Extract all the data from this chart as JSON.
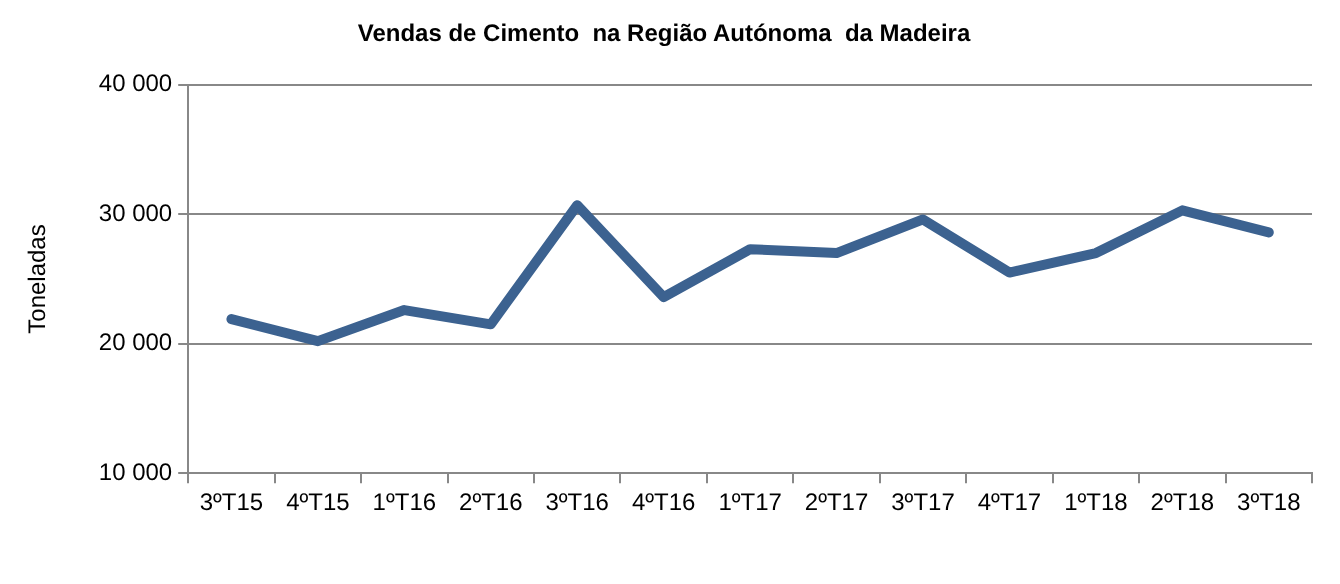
{
  "chart_data": {
    "type": "line",
    "title": "Vendas de Cimento  na Região Autónoma  da Madeira",
    "ylabel": "Toneladas",
    "categories": [
      "3ºT15",
      "4ºT15",
      "1ºT16",
      "2ºT16",
      "3ºT16",
      "4ºT16",
      "1ºT17",
      "2ºT17",
      "3ºT17",
      "4ºT17",
      "1ºT18",
      "2ºT18",
      "3ºT18"
    ],
    "series": [
      {
        "color": "#3c6290",
        "values": [
          21900,
          20200,
          22600,
          21500,
          30700,
          23600,
          27300,
          27000,
          29600,
          25500,
          27000,
          30300,
          28600
        ]
      }
    ],
    "ylim": [
      10000,
      40000
    ],
    "yticks": [
      {
        "value": 10000,
        "label": "10 000"
      },
      {
        "value": 20000,
        "label": "20 000"
      },
      {
        "value": 30000,
        "label": "30 000"
      },
      {
        "value": 40000,
        "label": "40 000"
      }
    ],
    "grid": "y",
    "legend": false,
    "marker": "none",
    "line_style": "solid"
  }
}
